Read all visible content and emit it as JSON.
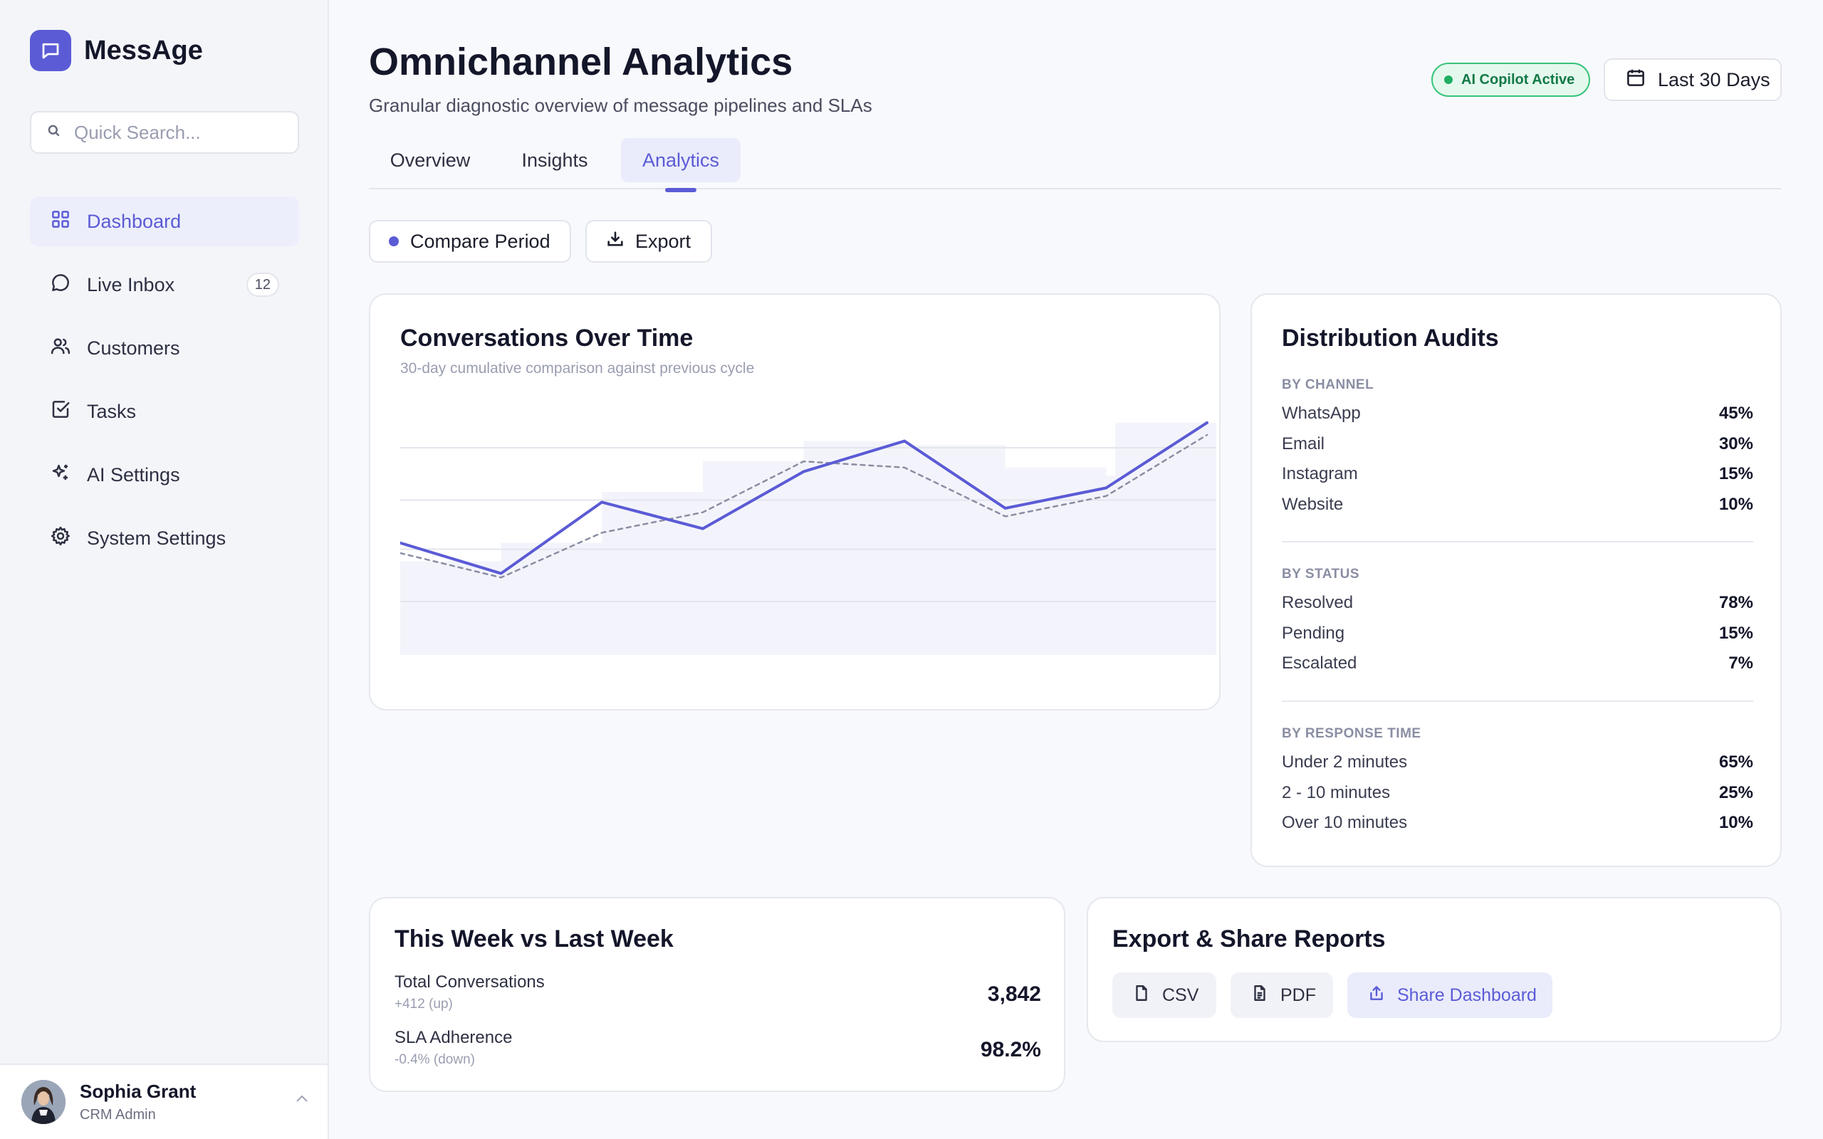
{
  "brand": {
    "name": "MessAge",
    "icon": "chat-bubble-icon",
    "color": "#5b5bd6"
  },
  "search": {
    "placeholder": "Quick Search..."
  },
  "nav": [
    {
      "label": "Dashboard",
      "icon": "grid-icon",
      "active": true
    },
    {
      "label": "Live Inbox",
      "icon": "message-circle-icon",
      "count": "12"
    },
    {
      "label": "Customers",
      "icon": "users-icon"
    },
    {
      "label": "Tasks",
      "icon": "check-square-icon"
    },
    {
      "label": "AI Settings",
      "icon": "sparkles-icon"
    },
    {
      "label": "System Settings",
      "icon": "gear-icon"
    }
  ],
  "user": {
    "name": "Sophia Grant",
    "role": "CRM Admin",
    "chevron": "chevron-up-icon"
  },
  "header": {
    "title": "Omnichannel Analytics",
    "subtitle": "Granular diagnostic overview of message pipelines and SLAs",
    "copilot_badge": "AI Copilot Active",
    "date_range": "Last 30 Days"
  },
  "tabs": [
    {
      "label": "Overview"
    },
    {
      "label": "Insights"
    },
    {
      "label": "Analytics",
      "active": true
    }
  ],
  "actions": {
    "compare": "Compare Period",
    "export": "Export"
  },
  "conversations_card": {
    "title": "Conversations Over Time",
    "subtitle": "30-day cumulative comparison against previous cycle"
  },
  "chart_data": {
    "type": "line",
    "title": "Conversations Over Time",
    "x": [
      1,
      2,
      3,
      4,
      5,
      6,
      7,
      8,
      9
    ],
    "series": [
      {
        "values": [
          55,
          40,
          75,
          62,
          90,
          105,
          72,
          82,
          114
        ],
        "color": "#5b5bd6",
        "style": "solid"
      },
      {
        "values": [
          50,
          38,
          60,
          70,
          95,
          92,
          68,
          78,
          108
        ],
        "color": "#8a8ea3",
        "style": "dashed"
      }
    ],
    "background_bars": [
      46,
      55,
      80,
      95,
      105,
      103,
      92,
      88,
      114
    ],
    "ylim": [
      0,
      130
    ],
    "grid": true
  },
  "distribution": {
    "title": "Distribution Audits",
    "sections": [
      {
        "heading": "BY CHANNEL",
        "rows": [
          {
            "label": "WhatsApp",
            "value": "45%"
          },
          {
            "label": "Email",
            "value": "30%"
          },
          {
            "label": "Instagram",
            "value": "15%"
          },
          {
            "label": "Website",
            "value": "10%"
          }
        ]
      },
      {
        "heading": "BY STATUS",
        "rows": [
          {
            "label": "Resolved",
            "value": "78%"
          },
          {
            "label": "Pending",
            "value": "15%"
          },
          {
            "label": "Escalated",
            "value": "7%"
          }
        ]
      },
      {
        "heading": "BY RESPONSE TIME",
        "rows": [
          {
            "label": "Under 2 minutes",
            "value": "65%"
          },
          {
            "label": "2 - 10 minutes",
            "value": "25%"
          },
          {
            "label": "Over 10 minutes",
            "value": "10%"
          }
        ]
      }
    ]
  },
  "week": {
    "title": "This Week vs Last Week",
    "rows": [
      {
        "label": "Total Conversations",
        "delta": "+412 (up)",
        "value": "3,842"
      },
      {
        "label": "SLA Adherence",
        "delta": "-0.4% (down)",
        "value": "98.2%"
      }
    ]
  },
  "reports": {
    "title": "Export & Share Reports",
    "buttons": [
      {
        "label": "CSV",
        "icon": "file-icon"
      },
      {
        "label": "PDF",
        "icon": "file-text-icon"
      },
      {
        "label": "Share Dashboard",
        "icon": "share-icon"
      }
    ]
  }
}
